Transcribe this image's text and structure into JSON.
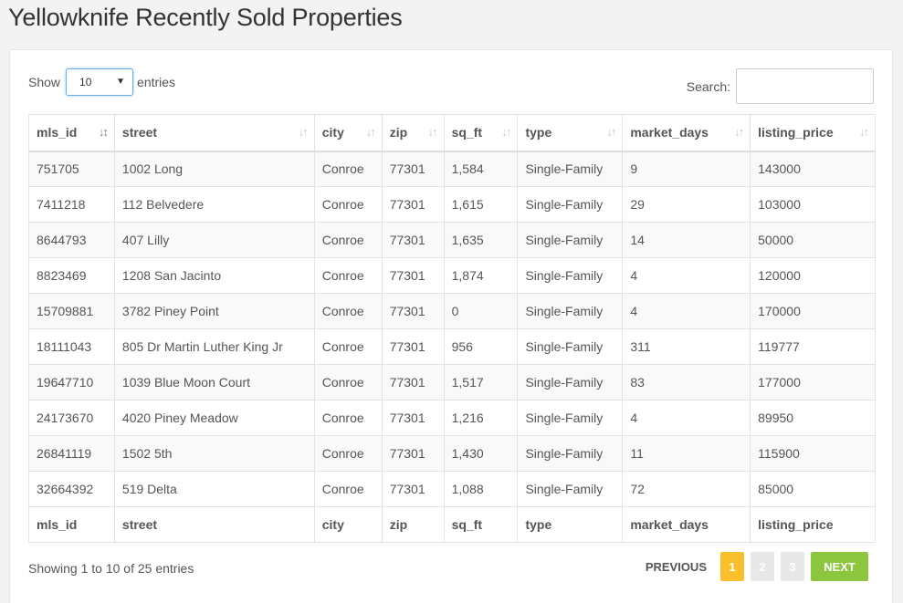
{
  "title": "Yellowknife Recently Sold Properties",
  "length": {
    "show_label": "Show",
    "selected": "10",
    "entries_label": "entries"
  },
  "search": {
    "label": "Search:",
    "value": ""
  },
  "table": {
    "columns": [
      "mls_id",
      "street",
      "city",
      "zip",
      "sq_ft",
      "type",
      "market_days",
      "listing_price"
    ],
    "rows": [
      [
        "751705",
        "1002 Long",
        "Conroe",
        "77301",
        "1,584",
        "Single-Family",
        "9",
        "143000"
      ],
      [
        "7411218",
        "112 Belvedere",
        "Conroe",
        "77301",
        "1,615",
        "Single-Family",
        "29",
        "103000"
      ],
      [
        "8644793",
        "407 Lilly",
        "Conroe",
        "77301",
        "1,635",
        "Single-Family",
        "14",
        "50000"
      ],
      [
        "8823469",
        "1208 San Jacinto",
        "Conroe",
        "77301",
        "1,874",
        "Single-Family",
        "4",
        "120000"
      ],
      [
        "15709881",
        "3782 Piney Point",
        "Conroe",
        "77301",
        "0",
        "Single-Family",
        "4",
        "170000"
      ],
      [
        "18111043",
        "805 Dr Martin Luther King Jr",
        "Conroe",
        "77301",
        "956",
        "Single-Family",
        "311",
        "119777"
      ],
      [
        "19647710",
        "1039 Blue Moon Court",
        "Conroe",
        "77301",
        "1,517",
        "Single-Family",
        "83",
        "177000"
      ],
      [
        "24173670",
        "4020 Piney Meadow",
        "Conroe",
        "77301",
        "1,216",
        "Single-Family",
        "4",
        "89950"
      ],
      [
        "26841119",
        "1502 5th",
        "Conroe",
        "77301",
        "1,430",
        "Single-Family",
        "11",
        "115900"
      ],
      [
        "32664392",
        "519 Delta",
        "Conroe",
        "77301",
        "1,088",
        "Single-Family",
        "72",
        "85000"
      ]
    ]
  },
  "info": "Showing 1 to 10 of 25 entries",
  "pagination": {
    "previous": "PREVIOUS",
    "pages": [
      "1",
      "2",
      "3"
    ],
    "current": "1",
    "next": "NEXT"
  },
  "colors": {
    "active_page": "#f9c02c",
    "next_button": "#8cc63f",
    "idle_page": "#e8e8e8"
  },
  "icons": {
    "sort_active": "sort-asc-icon",
    "sort": "sort-both-icon",
    "select_caret": "caret-down-icon"
  }
}
